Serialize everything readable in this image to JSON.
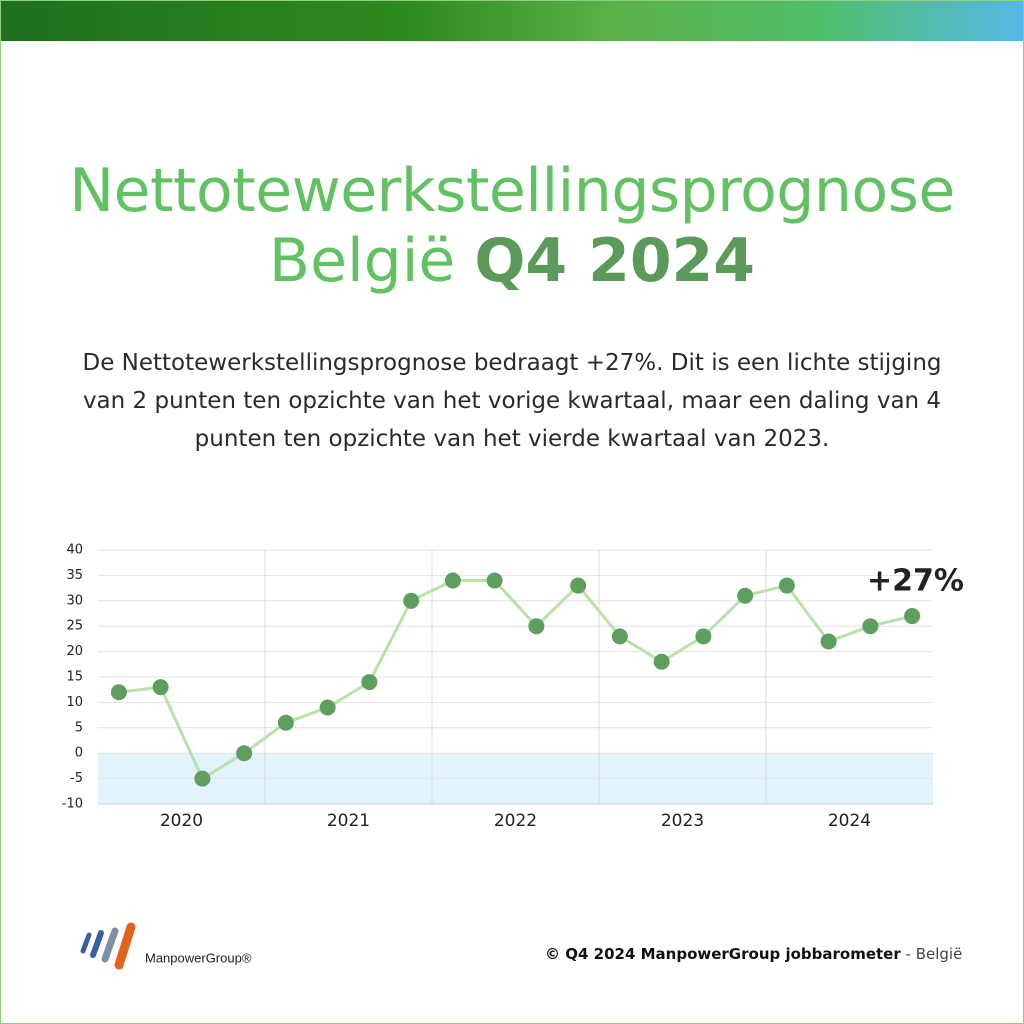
{
  "title_line1": "Nettotewerkstellingsprognose",
  "title_line2a": "België",
  "title_line2b": "Q4 2024",
  "description": "De Nettotewerkstellingsprognose bedraagt +27%. Dit is een lichte stijging van 2 punten ten opzichte van het vorige kwartaal, maar een daling van 4 punten ten opzichte van het vierde kwartaal van 2023.",
  "chart_data": {
    "type": "line",
    "years": [
      "2020",
      "2021",
      "2022",
      "2023",
      "2024"
    ],
    "values": [
      12,
      13,
      -5,
      0,
      6,
      9,
      14,
      30,
      34,
      34,
      25,
      33,
      23,
      18,
      23,
      31,
      33,
      22,
      25,
      27
    ],
    "line_color": "#b7e2aa",
    "marker_color": "#5e9e5e",
    "ylim": [
      -10,
      40
    ],
    "yticks": [
      -10,
      -5,
      0,
      5,
      10,
      15,
      20,
      25,
      30,
      35,
      40
    ],
    "grid": true,
    "negative_band": true,
    "annotation": "+27%"
  },
  "logo_text": "ManpowerGroup®",
  "footer_bold": "© Q4 2024 ManpowerGroup jobbarometer",
  "footer_rest": " - België"
}
